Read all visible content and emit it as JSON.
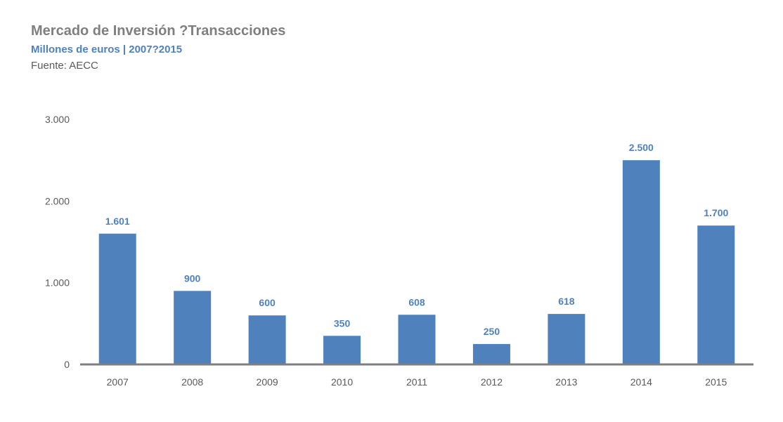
{
  "header": {
    "title": "Mercado de Inversión ?Transacciones",
    "subtitle": "Millones de euros | 2007?2015",
    "source": "Fuente: AECC"
  },
  "colors": {
    "bar": "#4f81bd",
    "label": "#4f81bd",
    "axis": "#7f7f7f",
    "title": "#7f7f7f",
    "subtitle": "#4f81bd",
    "text": "#595959"
  },
  "chart_data": {
    "type": "bar",
    "title": "Mercado de Inversión ?Transacciones",
    "subtitle": "Millones de euros | 2007?2015",
    "xlabel": "",
    "ylabel": "",
    "categories": [
      "2007",
      "2008",
      "2009",
      "2010",
      "2011",
      "2012",
      "2013",
      "2014",
      "2015"
    ],
    "values": [
      1601,
      900,
      600,
      350,
      608,
      250,
      618,
      2500,
      1700
    ],
    "value_labels": [
      "1.601",
      "900",
      "600",
      "350",
      "608",
      "250",
      "618",
      "2.500",
      "1.700"
    ],
    "ylim": [
      0,
      3000
    ],
    "yticks": [
      0,
      1000,
      2000,
      3000
    ],
    "ytick_labels": [
      "0",
      "1.000",
      "2.000",
      "3.000"
    ],
    "grid": false,
    "legend": "none"
  }
}
